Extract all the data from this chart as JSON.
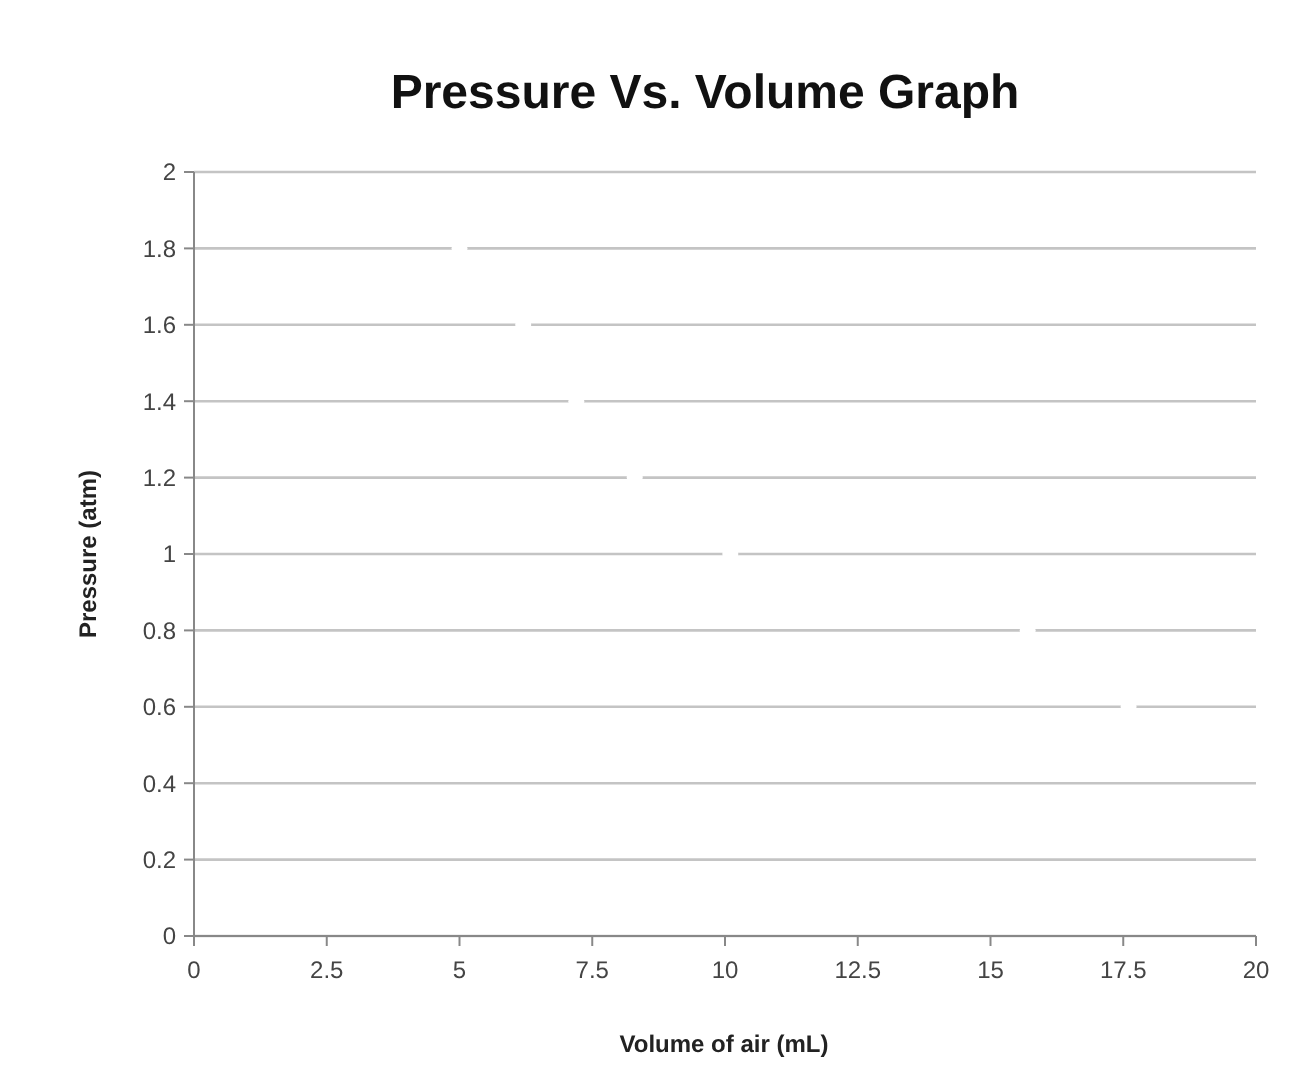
{
  "chart_data": {
    "type": "scatter",
    "title": "Pressure Vs. Volume Graph",
    "xlabel": "Volume of air (mL)",
    "ylabel": "Pressure (atm)",
    "x": [
      5.0,
      6.2,
      7.2,
      8.3,
      10.1,
      15.7,
      17.6
    ],
    "series": [
      {
        "color": "#ffffff",
        "values": [
          1.8,
          1.6,
          1.4,
          1.2,
          1.0,
          0.8,
          0.6
        ]
      }
    ],
    "xlim": [
      0,
      20
    ],
    "xticks": [
      0,
      2.5,
      5,
      7.5,
      10,
      12.5,
      15,
      17.5,
      20
    ],
    "ylim": [
      0,
      2
    ],
    "yticks": [
      0,
      0.2,
      0.4,
      0.6,
      0.8,
      1,
      1.2,
      1.4,
      1.6,
      1.8,
      2
    ],
    "grid": "y",
    "marker": "circle"
  }
}
